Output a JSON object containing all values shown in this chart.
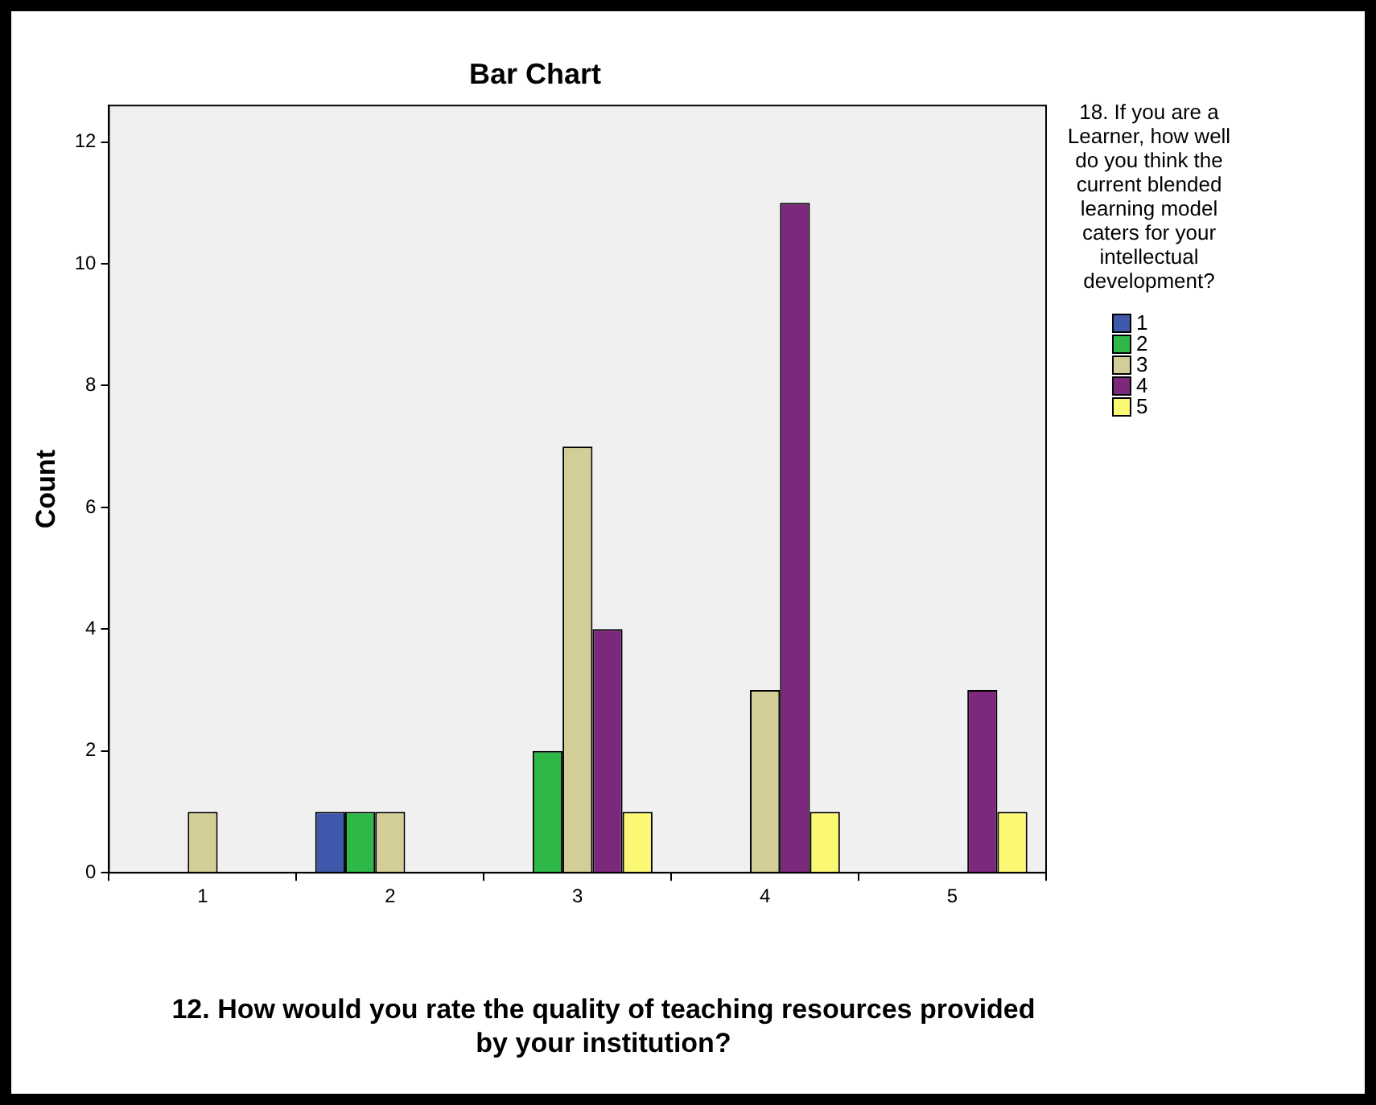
{
  "chart_data": {
    "type": "bar",
    "title": "Bar Chart",
    "xlabel": "12. How would you rate the quality of teaching resources provided by your institution?",
    "ylabel": "Count",
    "legend_title": "18. If you are a Learner, how well do you think the current blended learning model caters for your intellectual development?",
    "categories": [
      "1",
      "2",
      "3",
      "4",
      "5"
    ],
    "series": [
      {
        "name": "1",
        "color": "#3e58ac",
        "values": [
          null,
          1,
          null,
          null,
          null
        ]
      },
      {
        "name": "2",
        "color": "#2eb848",
        "values": [
          null,
          1,
          2,
          null,
          null
        ]
      },
      {
        "name": "3",
        "color": "#d3ce97",
        "values": [
          1,
          1,
          7,
          3,
          null
        ]
      },
      {
        "name": "4",
        "color": "#7c287d",
        "values": [
          null,
          null,
          4,
          11,
          3
        ]
      },
      {
        "name": "5",
        "color": "#fbf873",
        "values": [
          null,
          null,
          1,
          1,
          1
        ]
      }
    ],
    "ylim": [
      0,
      12.6
    ],
    "yticks": [
      0,
      2,
      4,
      6,
      8,
      10,
      12
    ],
    "grid": false,
    "legend": "right"
  }
}
